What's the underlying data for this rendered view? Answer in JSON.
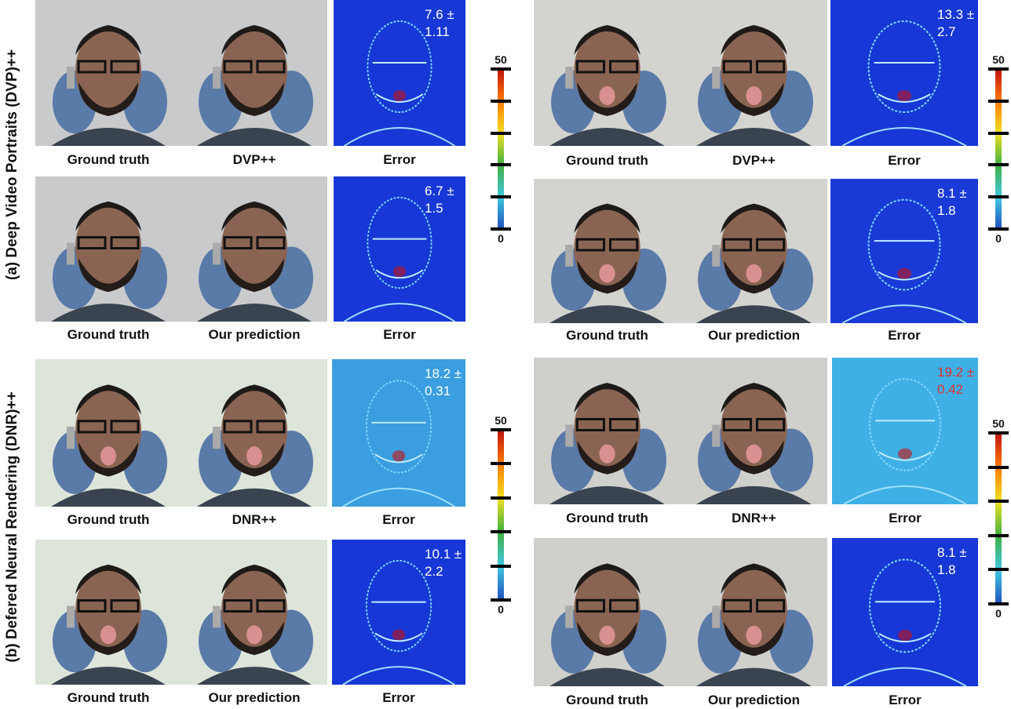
{
  "sections": [
    {
      "label": "(a) Deep Video Portraits (DVP)++",
      "groups": [
        {
          "rows": [
            {
              "captions": [
                "Ground truth",
                "DVP++",
                "Error"
              ],
              "error_text": [
                "7.6 ±",
                "1.11"
              ],
              "error_text_color": "#ffffff"
            },
            {
              "captions": [
                "Ground truth",
                "Our prediction",
                "Error"
              ],
              "error_text": [
                "6.7 ±",
                "1.5"
              ],
              "error_text_color": "#ffffff"
            }
          ],
          "colorbar": {
            "top": "50",
            "bottom": "0"
          }
        },
        {
          "rows": [
            {
              "captions": [
                "Ground truth",
                "DVP++",
                "Error"
              ],
              "error_text": [
                "13.3 ±",
                "2.7"
              ],
              "error_text_color": "#ffffff"
            },
            {
              "captions": [
                "Ground truth",
                "Our prediction",
                "Error"
              ],
              "error_text": [
                "8.1 ±",
                "1.8"
              ],
              "error_text_color": "#ffffff"
            }
          ],
          "colorbar": {
            "top": "50",
            "bottom": "0"
          }
        }
      ]
    },
    {
      "label": "(b) Defered Neural Rendering (DNR)++",
      "groups": [
        {
          "rows": [
            {
              "captions": [
                "Ground truth",
                "DNR++",
                "Error"
              ],
              "error_text": [
                "18.2 ±",
                "0.31"
              ],
              "error_text_color": "#ffffff"
            },
            {
              "captions": [
                "Ground truth",
                "Our prediction",
                "Error"
              ],
              "error_text": [
                "10.1 ±",
                "2.2"
              ],
              "error_text_color": "#ffffff"
            }
          ],
          "colorbar": {
            "top": "50",
            "bottom": "0"
          }
        },
        {
          "rows": [
            {
              "captions": [
                "Ground truth",
                "DNR++",
                "Error"
              ],
              "error_text": [
                "19.2 ±",
                "0.42"
              ],
              "error_text_color": "#e03030"
            },
            {
              "captions": [
                "Ground truth",
                "Our prediction",
                "Error"
              ],
              "error_text": [
                "8.1 ±",
                "1.8"
              ],
              "error_text_color": "#ffffff"
            }
          ],
          "colorbar": {
            "top": "50",
            "bottom": "0"
          }
        }
      ]
    }
  ]
}
